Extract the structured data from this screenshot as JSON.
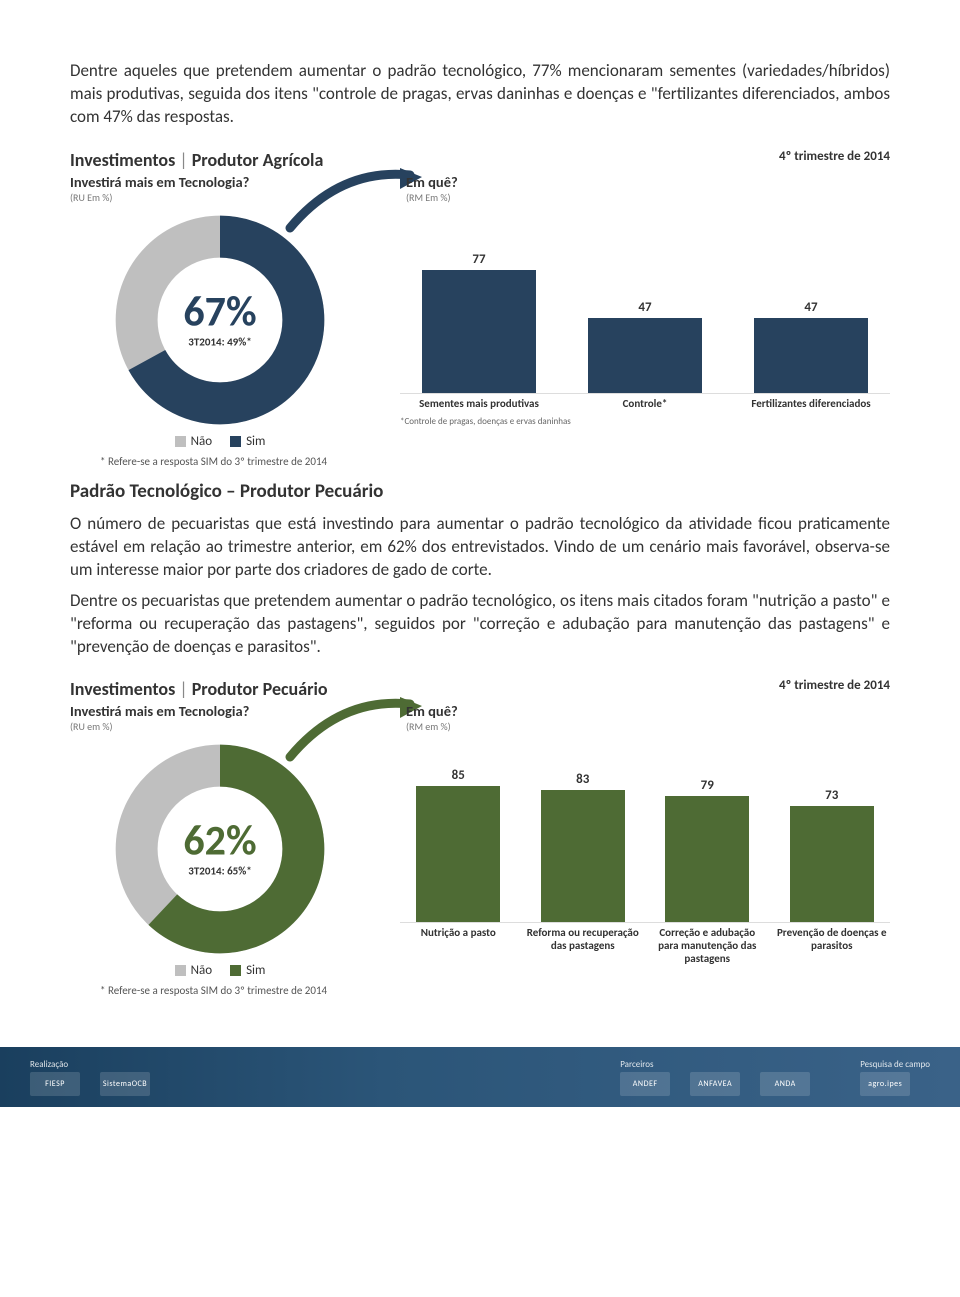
{
  "intro_para": "Dentre aqueles que pretendem aumentar o padrão tecnológico, 77% mencionaram sementes (variedades/híbridos) mais produtivas, seguida dos itens \"controle de pragas, ervas daninhas e doenças e \"fertilizantes diferenciados, ambos com 47% das respostas.",
  "chart1": {
    "title_a": "Investimentos",
    "title_b": "Produtor Agrícola",
    "period": "4º trimestre de 2014",
    "donut": {
      "question": "Investirá mais em Tecnologia?",
      "sub": "(RU Em %)",
      "yes_pct": 67,
      "no_pct": 33,
      "center_pct": "67%",
      "ref": "3T2014: 49%*",
      "yes_color": "#27425e",
      "no_color": "#bfbfbf"
    },
    "bars": {
      "question": "Em quê?",
      "sub": "(RM Em %)",
      "color": "#27425e",
      "ymax": 100,
      "items": [
        {
          "label": "Sementes mais produtivas",
          "value": 77
        },
        {
          "label": "Controle*",
          "value": 47
        },
        {
          "label": "Fertilizantes diferenciados",
          "value": 47
        }
      ],
      "note": "*Controle de pragas, doenças e ervas daninhas"
    },
    "legend_no": "Não",
    "legend_yes": "Sim",
    "footnote": "* Refere-se a resposta SIM do 3º trimestre de 2014"
  },
  "mid_title": "Padrão Tecnológico – Produtor Pecuário",
  "mid_para1": "O número de pecuaristas que está investindo para aumentar o padrão tecnológico da atividade ficou praticamente estável em relação ao trimestre anterior, em 62% dos entrevistados. Vindo de um cenário mais favorável, observa-se um interesse maior por parte dos criadores de gado de corte.",
  "mid_para2": "Dentre os pecuaristas que pretendem aumentar o padrão tecnológico, os itens mais citados foram \"nutrição a pasto\" e \"reforma ou recuperação das pastagens\", seguidos por \"correção e adubação para manutenção das pastagens\" e \"prevenção de doenças e parasitos\".",
  "chart2": {
    "title_a": "Investimentos",
    "title_b": "Produtor Pecuário",
    "period": "4º trimestre de 2014",
    "donut": {
      "question": "Investirá mais em Tecnologia?",
      "sub": "(RU em %)",
      "yes_pct": 62,
      "no_pct": 38,
      "center_pct": "62%",
      "ref": "3T2014: 65%*",
      "yes_color": "#4e6b34",
      "no_color": "#bfbfbf"
    },
    "bars": {
      "question": "Em quê?",
      "sub": "(RM em %)",
      "color": "#4e6b34",
      "ymax": 100,
      "items": [
        {
          "label": "Nutrição a pasto",
          "value": 85
        },
        {
          "label": "Reforma ou recuperação das pastagens",
          "value": 83
        },
        {
          "label": "Correção e adubação para manutenção das pastagens",
          "value": 79
        },
        {
          "label": "Prevenção de doenças e parasitos",
          "value": 73
        }
      ],
      "note": ""
    },
    "legend_no": "Não",
    "legend_yes": "Sim",
    "footnote": "* Refere-se a resposta SIM do 3º trimestre de 2014"
  },
  "footer": {
    "realizacao": "Realização",
    "parceiros": "Parceiros",
    "pesquisa": "Pesquisa de campo",
    "logos_r": [
      "FIESP",
      "SistemaOCB"
    ],
    "logos_p": [
      "ANDEF",
      "ANFAVEA",
      "ANDA"
    ],
    "logos_q": [
      "agro.ipes"
    ]
  }
}
